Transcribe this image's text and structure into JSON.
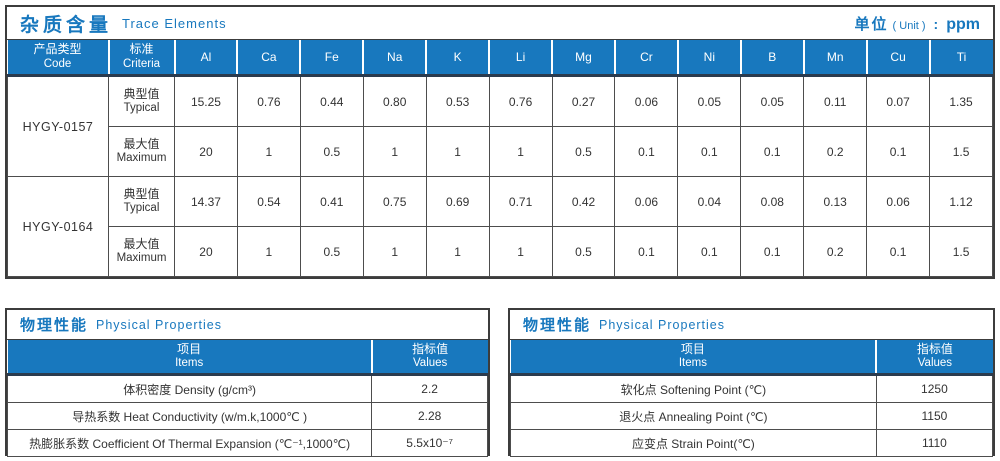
{
  "colors": {
    "accent_blue": "#1878BE",
    "header_dark_line": "#2B3B4E",
    "table_border": "#3C3C3C",
    "header_text": "#FFFFFF"
  },
  "trace_table": {
    "title_zh": "杂质含量",
    "title_en": "Trace Elements",
    "unit": {
      "zh": "单位",
      "paren": "( Unit )",
      "colon": ":",
      "value": "ppm"
    },
    "code_col": {
      "zh": "产品类型",
      "en": "Code"
    },
    "criteria_col": {
      "zh": "标准",
      "en": "Criteria"
    },
    "elements": [
      "Al",
      "Ca",
      "Fe",
      "Na",
      "K",
      "Li",
      "Mg",
      "Cr",
      "Ni",
      "B",
      "Mn",
      "Cu",
      "Ti"
    ],
    "products": [
      {
        "code": "HYGY-0157",
        "rows": [
          {
            "label_zh": "典型值",
            "label_en": "Typical",
            "values": [
              "15.25",
              "0.76",
              "0.44",
              "0.80",
              "0.53",
              "0.76",
              "0.27",
              "0.06",
              "0.05",
              "0.05",
              "0.11",
              "0.07",
              "1.35"
            ]
          },
          {
            "label_zh": "最大值",
            "label_en": "Maximum",
            "values": [
              "20",
              "1",
              "0.5",
              "1",
              "1",
              "1",
              "0.5",
              "0.1",
              "0.1",
              "0.1",
              "0.2",
              "0.1",
              "1.5"
            ]
          }
        ]
      },
      {
        "code": "HYGY-0164",
        "rows": [
          {
            "label_zh": "典型值",
            "label_en": "Typical",
            "values": [
              "14.37",
              "0.54",
              "0.41",
              "0.75",
              "0.69",
              "0.71",
              "0.42",
              "0.06",
              "0.04",
              "0.08",
              "0.13",
              "0.06",
              "1.12"
            ]
          },
          {
            "label_zh": "最大值",
            "label_en": "Maximum",
            "values": [
              "20",
              "1",
              "0.5",
              "1",
              "1",
              "1",
              "0.5",
              "0.1",
              "0.1",
              "0.1",
              "0.2",
              "0.1",
              "1.5"
            ]
          }
        ]
      }
    ]
  },
  "physical_left": {
    "title_zh": "物理性能",
    "title_en": "Physical Properties",
    "item_col": {
      "zh": "项目",
      "en": "Items"
    },
    "value_col": {
      "zh": "指标值",
      "en": "Values"
    },
    "rows": [
      {
        "item": "体积密度 Density (g/cm³)",
        "value": "2.2"
      },
      {
        "item": "导热系数 Heat Conductivity (w/m.k,1000℃ )",
        "value": "2.28"
      },
      {
        "item": "热膨胀系数 Coefficient Of Thermal Expansion (℃⁻¹,1000℃)",
        "value": "5.5x10⁻⁷"
      }
    ]
  },
  "physical_right": {
    "title_zh": "物理性能",
    "title_en": "Physical Properties",
    "item_col": {
      "zh": "项目",
      "en": "Items"
    },
    "value_col": {
      "zh": "指标值",
      "en": "Values"
    },
    "rows": [
      {
        "item": "软化点 Softening Point (℃)",
        "value": "1250"
      },
      {
        "item": "退火点 Annealing Point (℃)",
        "value": "1150"
      },
      {
        "item": "应变点 Strain Point(℃)",
        "value": "1110"
      }
    ]
  }
}
